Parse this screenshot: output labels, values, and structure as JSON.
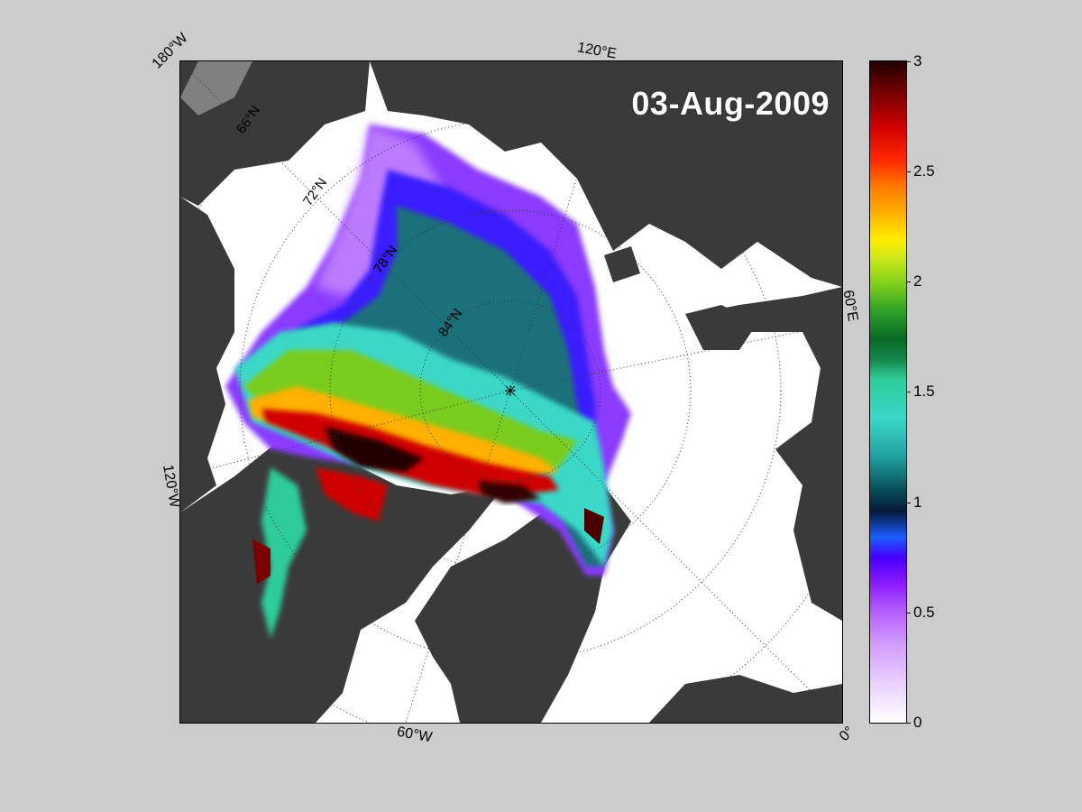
{
  "date": "03-Aug-2009",
  "longitude_labels": {
    "w180": "180°W",
    "e120": "120°E",
    "e60": "60°E",
    "w120": "120°W",
    "w60": "60°W",
    "zero": "0°"
  },
  "latitude_labels": {
    "n66": "66°N",
    "n72": "72°N",
    "n78": "78°N",
    "n84": "84°N"
  },
  "colorbar": {
    "min": 0,
    "max": 3,
    "ticks": [
      "0",
      "0.5",
      "1",
      "1.5",
      "2",
      "2.5",
      "3"
    ]
  },
  "colors": {
    "background": "#cccccc",
    "land": "#3a3a3a",
    "ocean_open": "#ffffff"
  }
}
